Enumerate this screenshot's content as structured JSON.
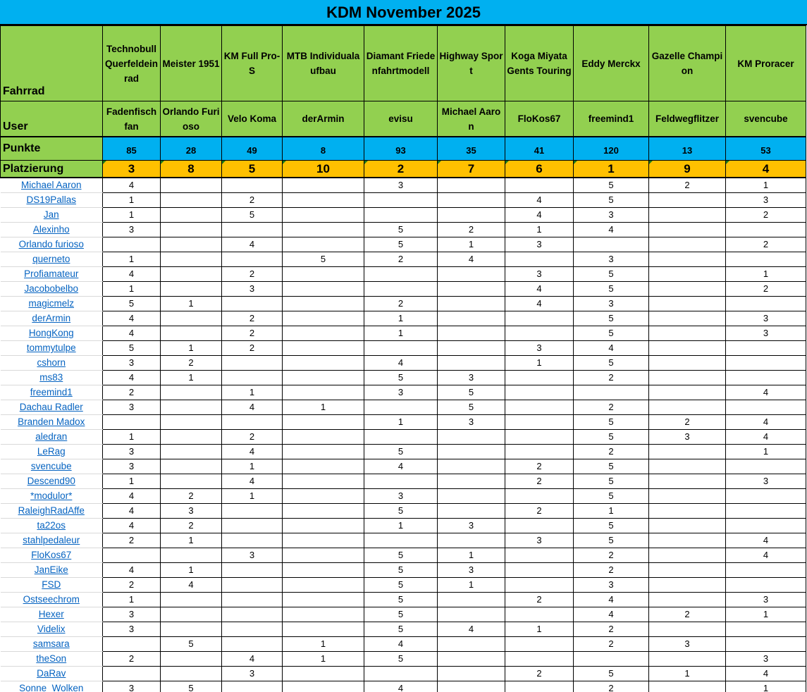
{
  "title": "KDM November 2025",
  "labels": {
    "bike": "Fahrrad",
    "user": "User",
    "points": "Punkte",
    "placement": "Platzierung"
  },
  "colors": {
    "title_bg": "#00b0f0",
    "header_bg": "#92d050",
    "points_bg": "#00b0f0",
    "placement_bg": "#ffc000",
    "link": "#0563c1"
  },
  "entries": [
    {
      "bike": "Technobull Querfeldeinrad",
      "user": "Fadenfisch fan",
      "points": "85",
      "placement": "3"
    },
    {
      "bike": "Meister 1951",
      "user": "Orlando Furioso",
      "points": "28",
      "placement": "8"
    },
    {
      "bike": "KM Full Pro-S",
      "user": "Velo Koma",
      "points": "49",
      "placement": "5"
    },
    {
      "bike": "MTB Individualaufbau",
      "user": "derArmin",
      "points": "8",
      "placement": "10"
    },
    {
      "bike": "Diamant Friedenfahrtmodell",
      "user": "evisu",
      "points": "93",
      "placement": "2"
    },
    {
      "bike": "Highway Sport",
      "user": "Michael Aaron",
      "points": "35",
      "placement": "7"
    },
    {
      "bike": "Koga Miyata Gents Touring",
      "user": "FloKos67",
      "points": "41",
      "placement": "6"
    },
    {
      "bike": "Eddy Merckx",
      "user": "freemind1",
      "points": "120",
      "placement": "1"
    },
    {
      "bike": "Gazelle Champion",
      "user": "Feldwegflitzer",
      "points": "13",
      "placement": "9"
    },
    {
      "bike": "KM Proracer",
      "user": "svencube",
      "points": "53",
      "placement": "4"
    }
  ],
  "votes": [
    {
      "voter": "Michael Aaron",
      "scores": [
        "4",
        "",
        "",
        "",
        "3",
        "",
        "",
        "5",
        "2",
        "1"
      ]
    },
    {
      "voter": "DS19Pallas",
      "scores": [
        "1",
        "",
        "2",
        "",
        "",
        "",
        "4",
        "5",
        "",
        "3"
      ]
    },
    {
      "voter": " Jan ",
      "scores": [
        "1",
        "",
        "5",
        "",
        "",
        "",
        "4",
        "3",
        "",
        "2"
      ]
    },
    {
      "voter": "Alexinho",
      "scores": [
        "3",
        "",
        "",
        "",
        "5",
        "2",
        "1",
        "4",
        "",
        ""
      ]
    },
    {
      "voter": "Orlando furioso",
      "scores": [
        "",
        "",
        "4",
        "",
        "5",
        "1",
        "3",
        "",
        "",
        "2"
      ]
    },
    {
      "voter": "querneto",
      "scores": [
        "1",
        "",
        "",
        "5",
        "2",
        "4",
        "",
        "3",
        "",
        ""
      ]
    },
    {
      "voter": "Profiamateur",
      "scores": [
        "4",
        "",
        "2",
        "",
        "",
        "",
        "3",
        "5",
        "",
        "1"
      ]
    },
    {
      "voter": "Jacobobelbo",
      "scores": [
        "1",
        "",
        "3",
        "",
        "",
        "",
        "4",
        "5",
        "",
        "2"
      ]
    },
    {
      "voter": "magicmelz",
      "scores": [
        "5",
        "1",
        "",
        "",
        "2",
        "",
        "4",
        "3",
        "",
        ""
      ]
    },
    {
      "voter": "derArmin",
      "scores": [
        "4",
        "",
        "2",
        "",
        "1",
        "",
        "",
        "5",
        "",
        "3"
      ]
    },
    {
      "voter": "HongKong",
      "scores": [
        "4",
        "",
        "2",
        "",
        "1",
        "",
        "",
        "5",
        "",
        "3"
      ]
    },
    {
      "voter": "tommytulpe",
      "scores": [
        "5",
        "1",
        "2",
        "",
        "",
        "",
        "3",
        "4",
        "",
        ""
      ]
    },
    {
      "voter": "cshorn",
      "scores": [
        "3",
        "2",
        "",
        "",
        "4",
        "",
        "1",
        "5",
        "",
        ""
      ]
    },
    {
      "voter": "ms83",
      "scores": [
        "4",
        "1",
        "",
        "",
        "5",
        "3",
        "",
        "2",
        "",
        ""
      ]
    },
    {
      "voter": "freemind1",
      "scores": [
        "2",
        "",
        "1",
        "",
        "3",
        "5",
        "",
        "",
        "",
        "4"
      ]
    },
    {
      "voter": "Dachau Radler",
      "scores": [
        "3",
        "",
        "4",
        "1",
        "",
        "5",
        "",
        "2",
        "",
        ""
      ]
    },
    {
      "voter": "Branden Madox",
      "scores": [
        "",
        "",
        "",
        "",
        "1",
        "3",
        "",
        "5",
        "2",
        "4"
      ]
    },
    {
      "voter": "aledran",
      "scores": [
        "1",
        "",
        "2",
        "",
        "",
        "",
        "",
        "5",
        "3",
        "4"
      ]
    },
    {
      "voter": "LeRag",
      "scores": [
        "3",
        "",
        "4",
        "",
        "5",
        "",
        "",
        "2",
        "",
        "1"
      ]
    },
    {
      "voter": "svencube",
      "scores": [
        "3",
        "",
        "1",
        "",
        "4",
        "",
        "2",
        "5",
        "",
        ""
      ]
    },
    {
      "voter": "Descend90",
      "scores": [
        "1",
        "",
        "4",
        "",
        "",
        "",
        "2",
        "5",
        "",
        "3"
      ]
    },
    {
      "voter": "*modulor*",
      "scores": [
        "4",
        "2",
        "1",
        "",
        "3",
        "",
        "",
        "5",
        "",
        ""
      ]
    },
    {
      "voter": "RaleighRadAffe",
      "scores": [
        "4",
        "3",
        "",
        "",
        "5",
        "",
        "2",
        "1",
        "",
        ""
      ]
    },
    {
      "voter": "ta22os",
      "scores": [
        "4",
        "2",
        "",
        "",
        "1",
        "3",
        "",
        "5",
        "",
        ""
      ]
    },
    {
      "voter": "stahlpedaleur",
      "scores": [
        "2",
        "1",
        "",
        "",
        "",
        "",
        "3",
        "5",
        "",
        "4"
      ]
    },
    {
      "voter": "FloKos67",
      "scores": [
        "",
        "",
        "3",
        "",
        "5",
        "1",
        "",
        "2",
        "",
        "4"
      ]
    },
    {
      "voter": "JanEike",
      "scores": [
        "4",
        "1",
        "",
        "",
        "5",
        "3",
        "",
        "2",
        "",
        ""
      ]
    },
    {
      "voter": "FSD",
      "scores": [
        "2",
        "4",
        "",
        "",
        "5",
        "1",
        "",
        "3",
        "",
        ""
      ]
    },
    {
      "voter": "Ostseechrom",
      "scores": [
        "1",
        "",
        "",
        "",
        "5",
        "",
        "2",
        "4",
        "",
        "3"
      ]
    },
    {
      "voter": "Hexer",
      "scores": [
        "3",
        "",
        "",
        "",
        "5",
        "",
        "",
        "4",
        "2",
        "1"
      ]
    },
    {
      "voter": "Videlix",
      "scores": [
        "3",
        "",
        "",
        "",
        "5",
        "4",
        "1",
        "2",
        "",
        ""
      ]
    },
    {
      "voter": "samsara",
      "scores": [
        "",
        "5",
        "",
        "1",
        "4",
        "",
        "",
        "2",
        "3",
        ""
      ]
    },
    {
      "voter": "theSon",
      "scores": [
        "2",
        "",
        "4",
        "1",
        "5",
        "",
        "",
        "",
        "",
        "3"
      ]
    },
    {
      "voter": "DaRav",
      "scores": [
        "",
        "",
        "3",
        "",
        "",
        "",
        "2",
        "5",
        "1",
        "4"
      ]
    },
    {
      "voter": "Sonne_Wolken",
      "scores": [
        "3",
        "5",
        "",
        "",
        "4",
        "",
        "",
        "2",
        "",
        "1"
      ]
    }
  ]
}
